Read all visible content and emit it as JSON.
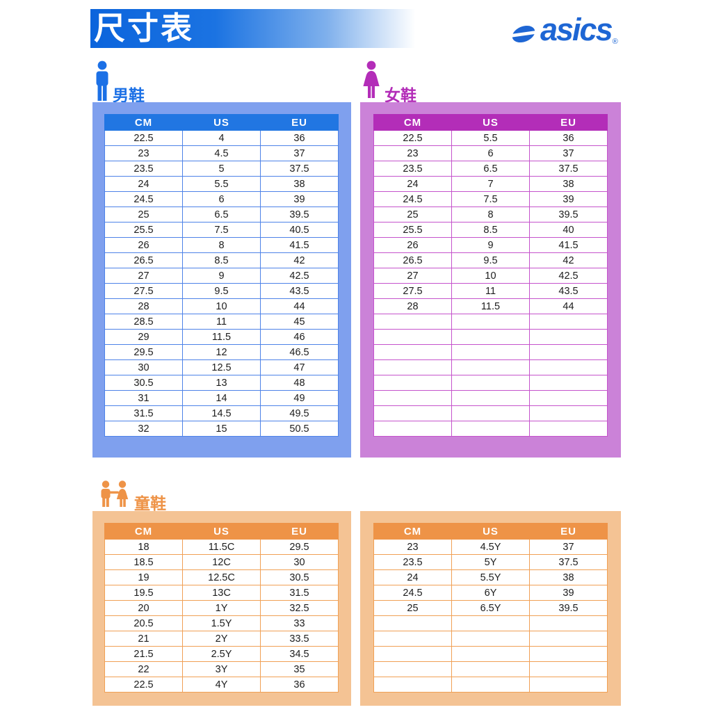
{
  "page": {
    "title": "尺寸表",
    "brand": "asics",
    "brand_reg": "®"
  },
  "columns": [
    "CM",
    "US",
    "EU"
  ],
  "colors": {
    "header_gradient_blue": "#0b64dc",
    "logo_blue": "#1e66d4",
    "men_accent": "#2176e2",
    "men_panel": "#7fa0ee",
    "women_accent": "#b32db8",
    "women_panel": "#cb82d8",
    "kids_accent": "#ee9347",
    "kids_panel": "#f4c394"
  },
  "icons": {
    "men": "male-person-icon",
    "women": "female-person-icon",
    "kids": "two-children-holding-hands-icon",
    "brand": "asics-spiral-logo-icon"
  },
  "sections": {
    "men": {
      "label": "男鞋",
      "rows": [
        [
          "22.5",
          "4",
          "36"
        ],
        [
          "23",
          "4.5",
          "37"
        ],
        [
          "23.5",
          "5",
          "37.5"
        ],
        [
          "24",
          "5.5",
          "38"
        ],
        [
          "24.5",
          "6",
          "39"
        ],
        [
          "25",
          "6.5",
          "39.5"
        ],
        [
          "25.5",
          "7.5",
          "40.5"
        ],
        [
          "26",
          "8",
          "41.5"
        ],
        [
          "26.5",
          "8.5",
          "42"
        ],
        [
          "27",
          "9",
          "42.5"
        ],
        [
          "27.5",
          "9.5",
          "43.5"
        ],
        [
          "28",
          "10",
          "44"
        ],
        [
          "28.5",
          "11",
          "45"
        ],
        [
          "29",
          "11.5",
          "46"
        ],
        [
          "29.5",
          "12",
          "46.5"
        ],
        [
          "30",
          "12.5",
          "47"
        ],
        [
          "30.5",
          "13",
          "48"
        ],
        [
          "31",
          "14",
          "49"
        ],
        [
          "31.5",
          "14.5",
          "49.5"
        ],
        [
          "32",
          "15",
          "50.5"
        ]
      ],
      "empty_rows": 0
    },
    "women": {
      "label": "女鞋",
      "rows": [
        [
          "22.5",
          "5.5",
          "36"
        ],
        [
          "23",
          "6",
          "37"
        ],
        [
          "23.5",
          "6.5",
          "37.5"
        ],
        [
          "24",
          "7",
          "38"
        ],
        [
          "24.5",
          "7.5",
          "39"
        ],
        [
          "25",
          "8",
          "39.5"
        ],
        [
          "25.5",
          "8.5",
          "40"
        ],
        [
          "26",
          "9",
          "41.5"
        ],
        [
          "26.5",
          "9.5",
          "42"
        ],
        [
          "27",
          "10",
          "42.5"
        ],
        [
          "27.5",
          "11",
          "43.5"
        ],
        [
          "28",
          "11.5",
          "44"
        ]
      ],
      "empty_rows": 8
    },
    "kids": {
      "label": "童鞋",
      "left_rows": [
        [
          "18",
          "11.5C",
          "29.5"
        ],
        [
          "18.5",
          "12C",
          "30"
        ],
        [
          "19",
          "12.5C",
          "30.5"
        ],
        [
          "19.5",
          "13C",
          "31.5"
        ],
        [
          "20",
          "1Y",
          "32.5"
        ],
        [
          "20.5",
          "1.5Y",
          "33"
        ],
        [
          "21",
          "2Y",
          "33.5"
        ],
        [
          "21.5",
          "2.5Y",
          "34.5"
        ],
        [
          "22",
          "3Y",
          "35"
        ],
        [
          "22.5",
          "4Y",
          "36"
        ]
      ],
      "left_empty_rows": 0,
      "right_rows": [
        [
          "23",
          "4.5Y",
          "37"
        ],
        [
          "23.5",
          "5Y",
          "37.5"
        ],
        [
          "24",
          "5.5Y",
          "38"
        ],
        [
          "24.5",
          "6Y",
          "39"
        ],
        [
          "25",
          "6.5Y",
          "39.5"
        ]
      ],
      "right_empty_rows": 5
    }
  }
}
